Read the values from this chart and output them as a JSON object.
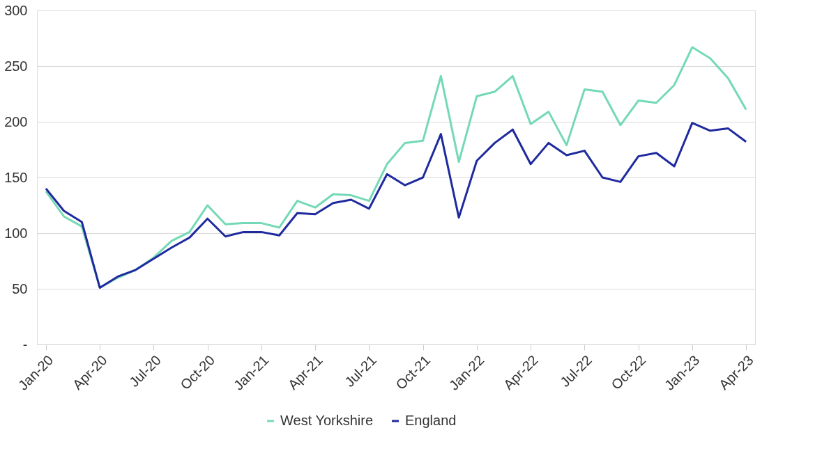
{
  "chart_data": {
    "type": "line",
    "categories": [
      "Jan-20",
      null,
      null,
      "Apr-20",
      null,
      null,
      "Jul-20",
      null,
      null,
      "Oct-20",
      null,
      null,
      "Jan-21",
      null,
      null,
      "Apr-21",
      null,
      null,
      "Jul-21",
      null,
      null,
      "Oct-21",
      null,
      null,
      "Jan-22",
      null,
      null,
      "Apr-22",
      null,
      null,
      "Jul-22",
      null,
      null,
      "Oct-22",
      null,
      null,
      "Jan-23",
      null,
      null,
      "Apr-23"
    ],
    "series": [
      {
        "name": "West Yorkshire",
        "color": "#74d9b5",
        "values": [
          137.5,
          115,
          106,
          51,
          60,
          67,
          78,
          93,
          101,
          125,
          108,
          109,
          109,
          105,
          129,
          123,
          135,
          134,
          129,
          162,
          181,
          183,
          241,
          164,
          223,
          227,
          241,
          198,
          209,
          179,
          229,
          227,
          197,
          219,
          217,
          233,
          267,
          257,
          239,
          211
        ]
      },
      {
        "name": "England",
        "color": "#1f2a9e",
        "values": [
          140,
          120,
          110,
          51,
          61,
          67,
          77,
          87,
          96,
          113,
          97,
          101,
          101,
          98,
          118,
          117,
          127,
          130,
          122,
          153,
          143,
          150,
          189,
          114,
          165,
          181,
          193,
          162,
          181,
          170,
          174,
          150,
          146,
          169,
          172,
          160,
          199,
          192,
          194,
          182
        ]
      }
    ],
    "ylim": [
      0,
      300
    ],
    "yticks": [
      {
        "value": 0,
        "label": "-"
      },
      50,
      100,
      150,
      200,
      250,
      300
    ],
    "grid": "y",
    "legend": "bottom",
    "marker": "none",
    "line_style": "solid"
  }
}
